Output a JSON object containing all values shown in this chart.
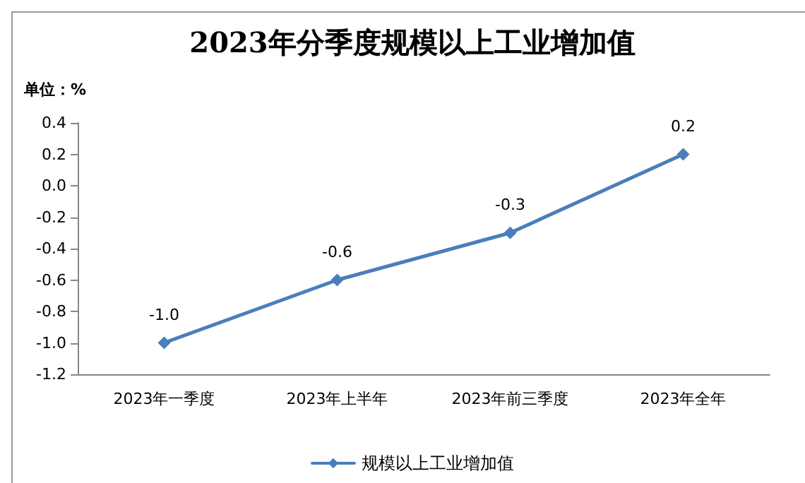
{
  "chart_data": {
    "type": "line",
    "title": "2023年分季度规模以上工业增加值",
    "ylabel": "单位：%",
    "categories": [
      "2023年一季度",
      "2023年上半年",
      "2023年前三季度",
      "2023年全年"
    ],
    "series": [
      {
        "name": "规模以上工业增加值",
        "color": "#4a7ebb",
        "values": [
          -1.0,
          -0.6,
          -0.3,
          0.2
        ],
        "value_labels": [
          "-1.0",
          "-0.6",
          "-0.3",
          "0.2"
        ]
      }
    ],
    "ylim": [
      -1.2,
      0.4
    ],
    "yticks": [
      {
        "value": -1.2,
        "label": "-1.2"
      },
      {
        "value": -1.0,
        "label": "-1.0"
      },
      {
        "value": -0.8,
        "label": "-0.8"
      },
      {
        "value": -0.6,
        "label": "-0.6"
      },
      {
        "value": -0.4,
        "label": "-0.4"
      },
      {
        "value": -0.2,
        "label": "-0.2"
      },
      {
        "value": 0,
        "label": "0.0"
      },
      {
        "value": 0.2,
        "label": "0.2"
      },
      {
        "value": 0.4,
        "label": "0.4"
      }
    ],
    "grid": false,
    "legend": "bottom",
    "marker": "diamond",
    "line_style": "solid"
  }
}
